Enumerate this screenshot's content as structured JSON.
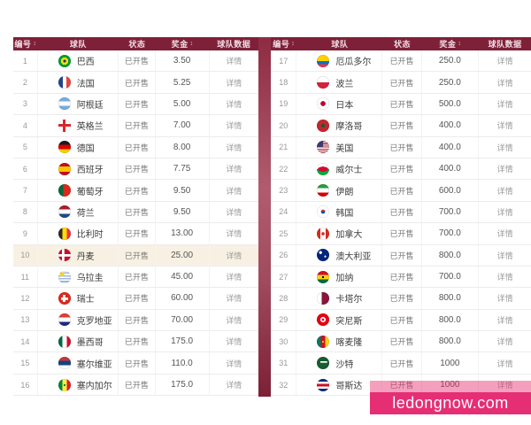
{
  "columns": [
    {
      "label": "编号",
      "sortable": true
    },
    {
      "label": "球队",
      "sortable": false
    },
    {
      "label": "状态",
      "sortable": false
    },
    {
      "label": "奖金",
      "sortable": true
    },
    {
      "label": "球队数据",
      "sortable": false
    }
  ],
  "sort_icon": "↕",
  "tables": [
    {
      "name": "teams-1-16",
      "rows": [
        {
          "no": "1",
          "team": "巴西",
          "flag": "brazil",
          "status": "已开售",
          "odds": "3.50",
          "details": "详情",
          "highlight": false
        },
        {
          "no": "2",
          "team": "法国",
          "flag": "france",
          "status": "已开售",
          "odds": "5.25",
          "details": "详情",
          "highlight": false
        },
        {
          "no": "3",
          "team": "阿根廷",
          "flag": "argentina",
          "status": "已开售",
          "odds": "5.00",
          "details": "详情",
          "highlight": false
        },
        {
          "no": "4",
          "team": "英格兰",
          "flag": "england",
          "status": "已开售",
          "odds": "7.00",
          "details": "详情",
          "highlight": false
        },
        {
          "no": "5",
          "team": "德国",
          "flag": "germany",
          "status": "已开售",
          "odds": "8.00",
          "details": "详情",
          "highlight": false
        },
        {
          "no": "6",
          "team": "西班牙",
          "flag": "spain",
          "status": "已开售",
          "odds": "7.75",
          "details": "详情",
          "highlight": false
        },
        {
          "no": "7",
          "team": "葡萄牙",
          "flag": "portugal",
          "status": "已开售",
          "odds": "9.50",
          "details": "详情",
          "highlight": false
        },
        {
          "no": "8",
          "team": "荷兰",
          "flag": "netherlands",
          "status": "已开售",
          "odds": "9.50",
          "details": "详情",
          "highlight": false
        },
        {
          "no": "9",
          "team": "比利时",
          "flag": "belgium",
          "status": "已开售",
          "odds": "13.00",
          "details": "详情",
          "highlight": false
        },
        {
          "no": "10",
          "team": "丹麦",
          "flag": "denmark",
          "status": "已开售",
          "odds": "25.00",
          "details": "详情",
          "highlight": true
        },
        {
          "no": "11",
          "team": "乌拉圭",
          "flag": "uruguay",
          "status": "已开售",
          "odds": "45.00",
          "details": "详情",
          "highlight": false
        },
        {
          "no": "12",
          "team": "瑞士",
          "flag": "switzerland",
          "status": "已开售",
          "odds": "60.00",
          "details": "详情",
          "highlight": false
        },
        {
          "no": "13",
          "team": "克罗地亚",
          "flag": "croatia",
          "status": "已开售",
          "odds": "70.00",
          "details": "详情",
          "highlight": false
        },
        {
          "no": "14",
          "team": "墨西哥",
          "flag": "mexico",
          "status": "已开售",
          "odds": "175.0",
          "details": "详情",
          "highlight": false
        },
        {
          "no": "15",
          "team": "塞尔维亚",
          "flag": "serbia",
          "status": "已开售",
          "odds": "110.0",
          "details": "详情",
          "highlight": false
        },
        {
          "no": "16",
          "team": "塞内加尔",
          "flag": "senegal",
          "status": "已开售",
          "odds": "175.0",
          "details": "详情",
          "highlight": false
        }
      ]
    },
    {
      "name": "teams-17-32",
      "rows": [
        {
          "no": "17",
          "team": "厄瓜多尔",
          "flag": "ecuador",
          "status": "已开售",
          "odds": "250.0",
          "details": "详情",
          "highlight": false
        },
        {
          "no": "18",
          "team": "波兰",
          "flag": "poland",
          "status": "已开售",
          "odds": "250.0",
          "details": "详情",
          "highlight": false
        },
        {
          "no": "19",
          "team": "日本",
          "flag": "japan",
          "status": "已开售",
          "odds": "500.0",
          "details": "详情",
          "highlight": false
        },
        {
          "no": "20",
          "team": "摩洛哥",
          "flag": "morocco",
          "status": "已开售",
          "odds": "400.0",
          "details": "详情",
          "highlight": false
        },
        {
          "no": "21",
          "team": "美国",
          "flag": "usa",
          "status": "已开售",
          "odds": "400.0",
          "details": "详情",
          "highlight": false
        },
        {
          "no": "22",
          "team": "威尔士",
          "flag": "wales",
          "status": "已开售",
          "odds": "400.0",
          "details": "详情",
          "highlight": false
        },
        {
          "no": "23",
          "team": "伊朗",
          "flag": "iran",
          "status": "已开售",
          "odds": "600.0",
          "details": "详情",
          "highlight": false
        },
        {
          "no": "24",
          "team": "韩国",
          "flag": "south-korea",
          "status": "已开售",
          "odds": "700.0",
          "details": "详情",
          "highlight": false
        },
        {
          "no": "25",
          "team": "加拿大",
          "flag": "canada",
          "status": "已开售",
          "odds": "700.0",
          "details": "详情",
          "highlight": false
        },
        {
          "no": "26",
          "team": "澳大利亚",
          "flag": "australia",
          "status": "已开售",
          "odds": "800.0",
          "details": "详情",
          "highlight": false
        },
        {
          "no": "27",
          "team": "加纳",
          "flag": "ghana",
          "status": "已开售",
          "odds": "700.0",
          "details": "详情",
          "highlight": false
        },
        {
          "no": "28",
          "team": "卡塔尔",
          "flag": "qatar",
          "status": "已开售",
          "odds": "800.0",
          "details": "详情",
          "highlight": false
        },
        {
          "no": "29",
          "team": "突尼斯",
          "flag": "tunisia",
          "status": "已开售",
          "odds": "800.0",
          "details": "详情",
          "highlight": false
        },
        {
          "no": "30",
          "team": "喀麦隆",
          "flag": "cameroon",
          "status": "已开售",
          "odds": "800.0",
          "details": "详情",
          "highlight": false
        },
        {
          "no": "31",
          "team": "沙特",
          "flag": "saudi-arabia",
          "status": "已开售",
          "odds": "1000",
          "details": "详情",
          "highlight": false
        },
        {
          "no": "32",
          "team": "哥斯达",
          "flag": "costa-rica",
          "status": "已开售",
          "odds": "1000",
          "details": "详情",
          "highlight": false
        }
      ]
    }
  ],
  "watermark": {
    "text": "ledongnow.com"
  },
  "colors": {
    "header_bg": "#7e2038",
    "divider_top": "#8e2b43",
    "divider_mid": "#b05c6e",
    "divider_bottom": "#7c2036",
    "highlight_row": "#f8f1e3",
    "watermark_bg": "#e62e74"
  }
}
